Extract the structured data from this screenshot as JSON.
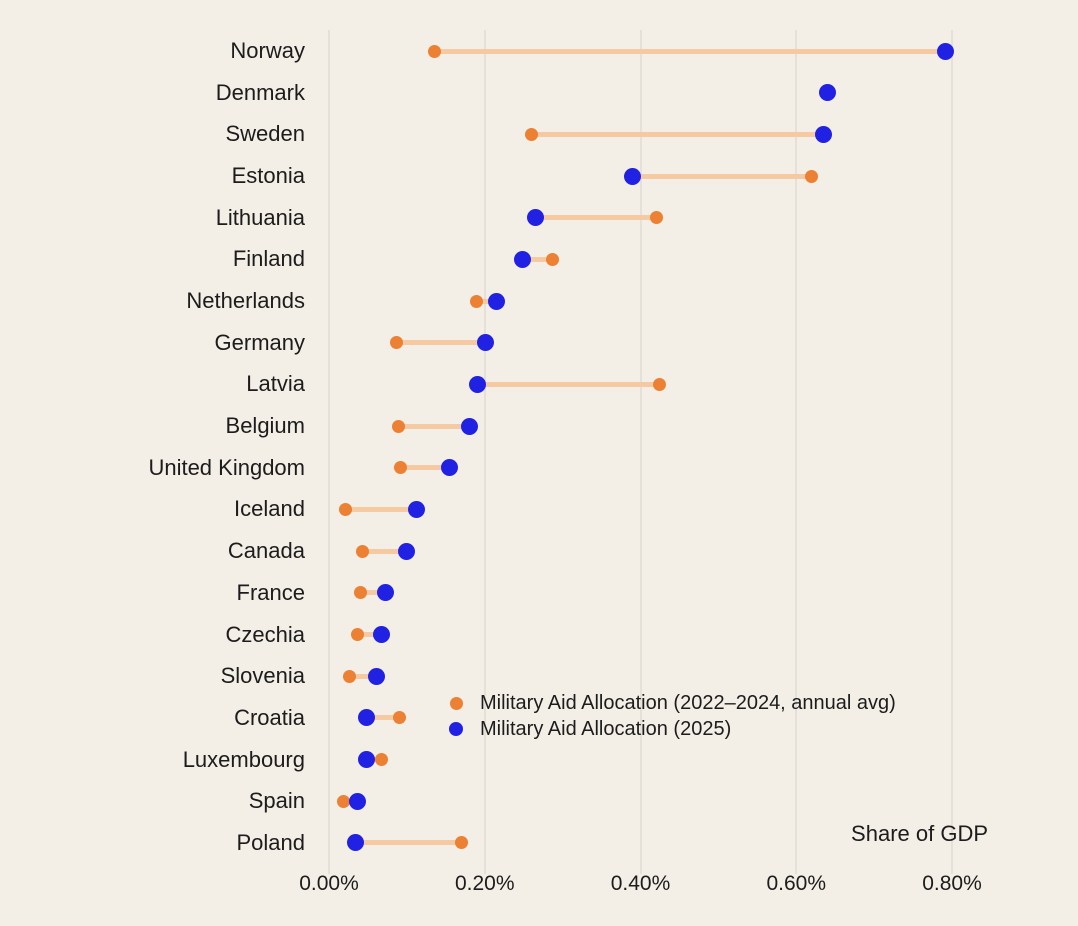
{
  "colors": {
    "background": "#F3EEE6",
    "gridline": "#E5E1D8",
    "text": "#1C1C1C",
    "orange": "#EC8033",
    "blue": "#2121E3",
    "connector": "#F5C9A2"
  },
  "legend": {
    "item_avg_label": "Military Aid Allocation (2022–2024, annual avg)",
    "item_2025_label": "Military Aid Allocation (2025)"
  },
  "chart_data": {
    "type": "dumbbell",
    "title": "",
    "xlabel": "Share of GDP",
    "unit": "percent of GDP",
    "grid": true,
    "legend_position": "inside-lower-middle",
    "x_axis": {
      "min": 0,
      "max": 0.8,
      "tick_labels": [
        "0.00%",
        "0.20%",
        "0.40%",
        "0.60%",
        "0.80%"
      ],
      "tick_values": [
        0,
        0.2,
        0.4,
        0.6,
        0.8
      ]
    },
    "series": [
      {
        "name": "Military Aid Allocation (2022–2024, annual avg)",
        "key": "avg_2022_2024",
        "color": "#EC8033"
      },
      {
        "name": "Military Aid Allocation (2025)",
        "key": "y2025",
        "color": "#2121E3"
      }
    ],
    "categories": [
      "Norway",
      "Denmark",
      "Sweden",
      "Estonia",
      "Lithuania",
      "Finland",
      "Netherlands",
      "Germany",
      "Latvia",
      "Belgium",
      "United Kingdom",
      "Iceland",
      "Canada",
      "France",
      "Czechia",
      "Slovenia",
      "Croatia",
      "Luxembourg",
      "Spain",
      "Poland"
    ],
    "rows": [
      {
        "country": "Norway",
        "avg_2022_2024": 0.135,
        "y2025": 0.792
      },
      {
        "country": "Denmark",
        "avg_2022_2024": null,
        "y2025": 0.64
      },
      {
        "country": "Sweden",
        "avg_2022_2024": 0.26,
        "y2025": 0.635
      },
      {
        "country": "Estonia",
        "avg_2022_2024": 0.62,
        "y2025": 0.39
      },
      {
        "country": "Lithuania",
        "avg_2022_2024": 0.42,
        "y2025": 0.265
      },
      {
        "country": "Finland",
        "avg_2022_2024": 0.287,
        "y2025": 0.248
      },
      {
        "country": "Netherlands",
        "avg_2022_2024": 0.19,
        "y2025": 0.215
      },
      {
        "country": "Germany",
        "avg_2022_2024": 0.087,
        "y2025": 0.201
      },
      {
        "country": "Latvia",
        "avg_2022_2024": 0.424,
        "y2025": 0.191
      },
      {
        "country": "Belgium",
        "avg_2022_2024": 0.089,
        "y2025": 0.18
      },
      {
        "country": "United Kingdom",
        "avg_2022_2024": 0.092,
        "y2025": 0.155
      },
      {
        "country": "Iceland",
        "avg_2022_2024": 0.021,
        "y2025": 0.113
      },
      {
        "country": "Canada",
        "avg_2022_2024": 0.043,
        "y2025": 0.1
      },
      {
        "country": "France",
        "avg_2022_2024": 0.04,
        "y2025": 0.072
      },
      {
        "country": "Czechia",
        "avg_2022_2024": 0.036,
        "y2025": 0.068
      },
      {
        "country": "Slovenia",
        "avg_2022_2024": 0.026,
        "y2025": 0.061
      },
      {
        "country": "Croatia",
        "avg_2022_2024": 0.091,
        "y2025": 0.048
      },
      {
        "country": "Luxembourg",
        "avg_2022_2024": 0.068,
        "y2025": 0.048
      },
      {
        "country": "Spain",
        "avg_2022_2024": 0.018,
        "y2025": 0.036
      },
      {
        "country": "Poland",
        "avg_2022_2024": 0.17,
        "y2025": 0.034
      }
    ]
  }
}
